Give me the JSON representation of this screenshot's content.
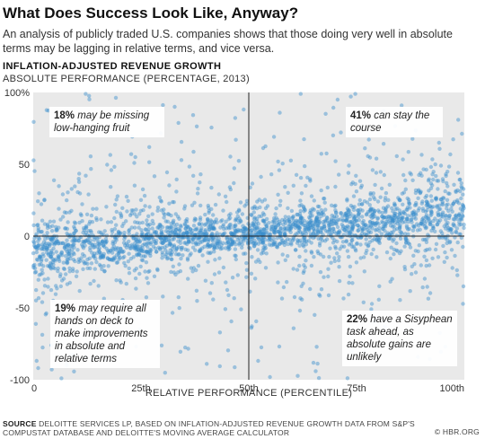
{
  "header": {
    "title": "What Does Success Look Like, Anyway?",
    "subtitle": "An analysis of publicly traded U.S. companies shows that those doing very well in absolute terms may be lagging in relative terms, and vice versa."
  },
  "chart_heading": "INFLATION-ADJUSTED REVENUE GROWTH",
  "chart_data": {
    "type": "scatter",
    "title": "INFLATION-ADJUSTED REVENUE GROWTH",
    "xlabel": "RELATIVE PERFORMANCE (PERCENTILE)",
    "ylabel": "ABSOLUTE PERFORMANCE (PERCENTAGE, 2013)",
    "xlim": [
      0,
      100
    ],
    "ylim": [
      -100,
      100
    ],
    "x_ticks": [
      "0",
      "25th",
      "50th",
      "75th",
      "100th"
    ],
    "y_ticks": [
      "100%",
      "50",
      "0",
      "-50",
      "-100"
    ],
    "point_color": "#3a8fcc",
    "approx_point_count": 2600,
    "distribution_note": "dense horizontal band near 0 that rises gradually from about -10% at the 0th percentile to about +15% at the 100th percentile, with wider scatter toward the extremes",
    "quadrant_split": {
      "x": 50,
      "y": 0
    },
    "quadrants": [
      {
        "id": "top-left",
        "pct": "18%",
        "text": "may be missing low-hanging fruit"
      },
      {
        "id": "top-right",
        "pct": "41%",
        "text": "can stay the course"
      },
      {
        "id": "bottom-left",
        "pct": "19%",
        "text": "may require all hands on deck to make improvements in absolute and relative terms"
      },
      {
        "id": "bottom-right",
        "pct": "22%",
        "text": "have a Sisyphean task ahead, as absolute gains are unlikely"
      }
    ]
  },
  "footer": {
    "source_label": "SOURCE",
    "source_text": "DELOITTE SERVICES LP, BASED ON INFLATION-ADJUSTED REVENUE GROWTH DATA FROM S&P'S COMPUSTAT DATABASE AND DELOITTE'S MOVING AVERAGE CALCULATOR",
    "credit": "© HBR.ORG"
  },
  "colors": {
    "plot_background": "#e9e9e9",
    "points": "#3a8fcc",
    "axis_lines": "#222222"
  }
}
